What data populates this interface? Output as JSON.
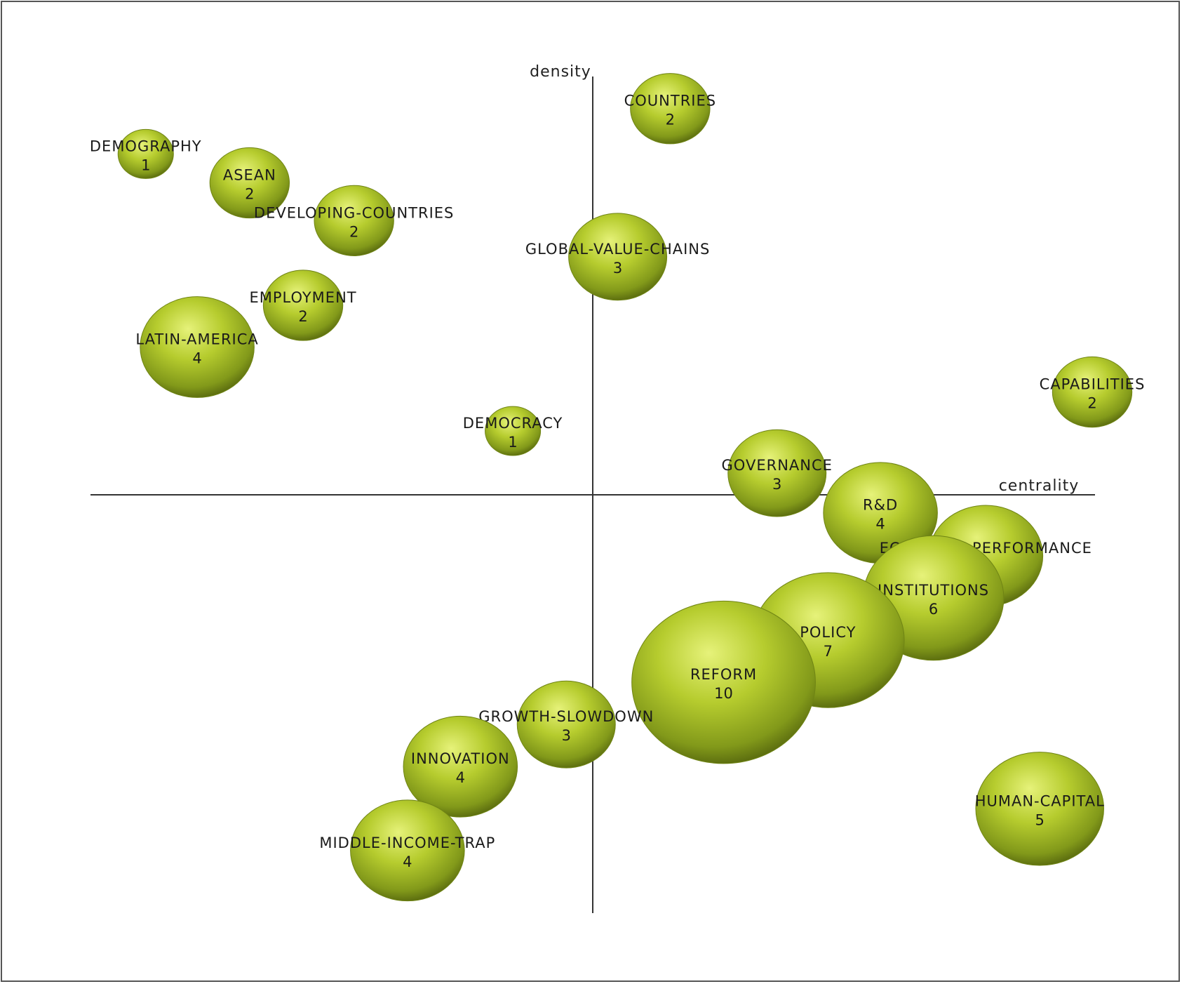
{
  "chart_data": {
    "type": "scatter",
    "title": "",
    "xlabel": "centrality",
    "ylabel": "density",
    "xlim": [
      -10,
      10
    ],
    "ylim": [
      -10,
      10
    ],
    "grid": false,
    "point_color": "#9bb521",
    "points": [
      {
        "label": "DEMOGRAPHY",
        "value": 1,
        "x": -8.95,
        "y": 8.49
      },
      {
        "label": "ASEAN",
        "value": 2,
        "x": -6.87,
        "y": 7.77
      },
      {
        "label": "DEVELOPING-COUNTRIES",
        "value": 2,
        "x": -4.78,
        "y": 6.83
      },
      {
        "label": "EMPLOYMENT",
        "value": 2,
        "x": -5.8,
        "y": 4.72
      },
      {
        "label": "LATIN-AMERICA",
        "value": 4,
        "x": -7.92,
        "y": 3.68
      },
      {
        "label": "COUNTRIES",
        "value": 2,
        "x": 1.55,
        "y": 9.62
      },
      {
        "label": "GLOBAL-VALUE-CHAINS",
        "value": 3,
        "x": 0.5,
        "y": 5.93
      },
      {
        "label": "DEMOCRACY",
        "value": 1,
        "x": -1.6,
        "y": 1.59
      },
      {
        "label": "CAPABILITIES",
        "value": 2,
        "x": 10.0,
        "y": 2.56
      },
      {
        "label": "GOVERNANCE",
        "value": 3,
        "x": 3.69,
        "y": 0.54
      },
      {
        "label": "R&D",
        "value": 4,
        "x": 5.76,
        "y": -0.45
      },
      {
        "label": "ECONOMIC-PERFORMANCE",
        "value": 4,
        "x": 7.87,
        "y": -1.52
      },
      {
        "label": "INSTITUTIONS",
        "value": 6,
        "x": 6.82,
        "y": -2.57
      },
      {
        "label": "POLICY",
        "value": 7,
        "x": 4.71,
        "y": -3.62
      },
      {
        "label": "REFORM",
        "value": 10,
        "x": 2.62,
        "y": -4.67
      },
      {
        "label": "GROWTH-SLOWDOWN",
        "value": 3,
        "x": -0.53,
        "y": -5.72
      },
      {
        "label": "INNOVATION",
        "value": 4,
        "x": -2.65,
        "y": -6.77
      },
      {
        "label": "MIDDLE-INCOME-TRAP",
        "value": 4,
        "x": -3.71,
        "y": -8.86
      },
      {
        "label": "HUMAN-CAPITAL",
        "value": 5,
        "x": 8.95,
        "y": -7.82
      }
    ]
  }
}
